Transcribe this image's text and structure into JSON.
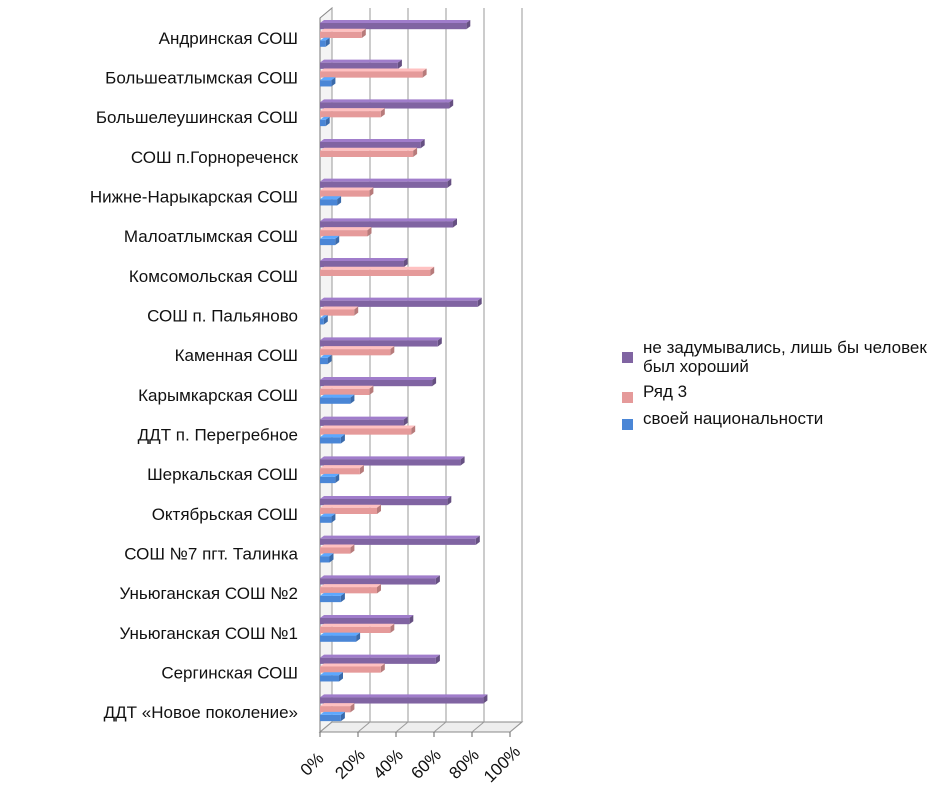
{
  "chart_data": {
    "type": "bar",
    "orientation": "horizontal",
    "style": "3d-clustered",
    "categories": [
      "Андринская СОШ",
      "Большеатлымская СОШ",
      "Большелеушинская СОШ",
      "СОШ п.Горнореченск",
      "Нижне-Нарыкарская СОШ",
      "Малоатлымская СОШ",
      "Комсомольская СОШ",
      "СОШ п. Пальяново",
      "Каменная СОШ",
      "Карымкарская СОШ",
      "ДДТ п. Перегребное",
      "Шеркальская СОШ",
      "Октябрьская СОШ",
      "СОШ №7 пгт. Талинка",
      "Уньюганская СОШ №2",
      "Уньюганская СОШ №1",
      "Сергинская СОШ",
      "ДДТ «Новое поколение»"
    ],
    "series": [
      {
        "name": "не задумывались, лишь бы человек был хороший",
        "color": "#8064A2",
        "values": [
          77,
          41,
          68,
          53,
          67,
          70,
          44,
          83,
          62,
          59,
          44,
          74,
          67,
          82,
          61,
          47,
          61,
          86
        ]
      },
      {
        "name": "Ряд 3",
        "color": "#E59A9A",
        "values": [
          22,
          54,
          32,
          49,
          26,
          25,
          58,
          18,
          37,
          26,
          48,
          21,
          30,
          16,
          30,
          37,
          32,
          16
        ]
      },
      {
        "name": "своей национальности",
        "color": "#4A86D6",
        "values": [
          3,
          6,
          3,
          0,
          9,
          8,
          0,
          2,
          4,
          16,
          11,
          8,
          6,
          5,
          11,
          19,
          10,
          11
        ]
      }
    ],
    "x_axis": {
      "ticks": [
        "0%",
        "20%",
        "40%",
        "60%",
        "80%",
        "100%"
      ],
      "range": [
        0,
        100
      ],
      "unit": "%"
    },
    "grid": true,
    "legend_position": "right"
  }
}
